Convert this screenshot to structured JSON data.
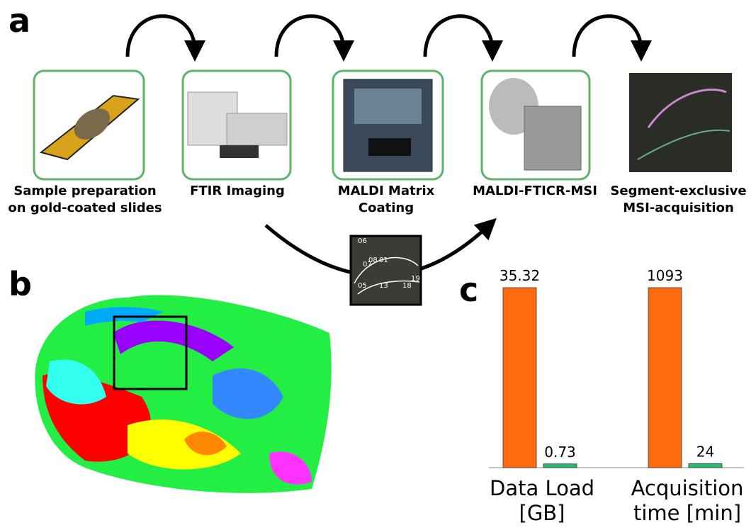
{
  "panel_labels": [
    "a",
    "b",
    "c"
  ],
  "workflow": {
    "steps": [
      "Sample preparation on gold-coated slides",
      "FTIR Imaging",
      "MALDI Matrix Coating",
      "MALDI-FTICR-MSI",
      "Segment-exclusive MSI-acquisition"
    ],
    "inset_labels": [
      "06",
      "07",
      "08",
      "01",
      "05",
      "13",
      "18",
      "19"
    ]
  },
  "chart_data": {
    "type": "bar",
    "categories": [
      "Data Load [GB]",
      "Acquisition time [min]"
    ],
    "series": [
      {
        "color": "#ff6a0d",
        "values": [
          35.32,
          1093
        ]
      },
      {
        "color": "#22c068",
        "values": [
          0.73,
          24
        ]
      }
    ]
  }
}
